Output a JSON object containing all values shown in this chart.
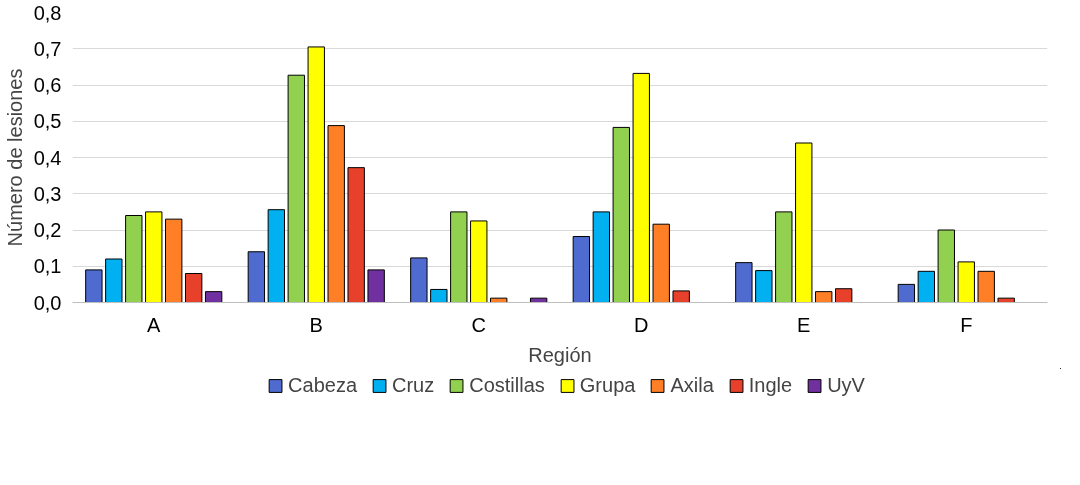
{
  "chart_data": {
    "type": "bar",
    "xlabel": "Región",
    "ylabel": "Número de lesiones",
    "categories": [
      "A",
      "B",
      "C",
      "D",
      "E",
      "F"
    ],
    "ylim": [
      0,
      0.8
    ],
    "yticks": [
      {
        "value": 0,
        "label": "0,0"
      },
      {
        "value": 0.1,
        "label": "0,1"
      },
      {
        "value": 0.2,
        "label": "0,2"
      },
      {
        "value": 0.3,
        "label": "0,3"
      },
      {
        "value": 0.4,
        "label": "0,4"
      },
      {
        "value": 0.5,
        "label": "0,5"
      },
      {
        "value": 0.6,
        "label": "0,6"
      },
      {
        "value": 0.7,
        "label": "0,7"
      },
      {
        "value": 0.8,
        "label": "0,8"
      }
    ],
    "grid": "y",
    "legend": "bottom",
    "series": [
      {
        "name": "Cabeza",
        "color": "#4f6bd0",
        "values": [
          0.09,
          0.14,
          0.123,
          0.182,
          0.11,
          0.05
        ]
      },
      {
        "name": "Cruz",
        "color": "#00b0f0",
        "values": [
          0.12,
          0.256,
          0.036,
          0.25,
          0.088,
          0.086
        ]
      },
      {
        "name": "Costillas",
        "color": "#92d050",
        "values": [
          0.24,
          0.627,
          0.25,
          0.483,
          0.25,
          0.2
        ]
      },
      {
        "name": "Grupa",
        "color": "#ffff00",
        "values": [
          0.25,
          0.705,
          0.225,
          0.632,
          0.44,
          0.112
        ]
      },
      {
        "name": "Axila",
        "color": "#ff7f27",
        "values": [
          0.23,
          0.488,
          0.012,
          0.216,
          0.03,
          0.086
        ]
      },
      {
        "name": "Ingle",
        "color": "#e8412b",
        "values": [
          0.08,
          0.372,
          0,
          0.032,
          0.038,
          0.012
        ]
      },
      {
        "name": "UyV",
        "color": "#7030a0",
        "values": [
          0.03,
          0.09,
          0.012,
          0,
          0,
          0
        ]
      }
    ]
  }
}
